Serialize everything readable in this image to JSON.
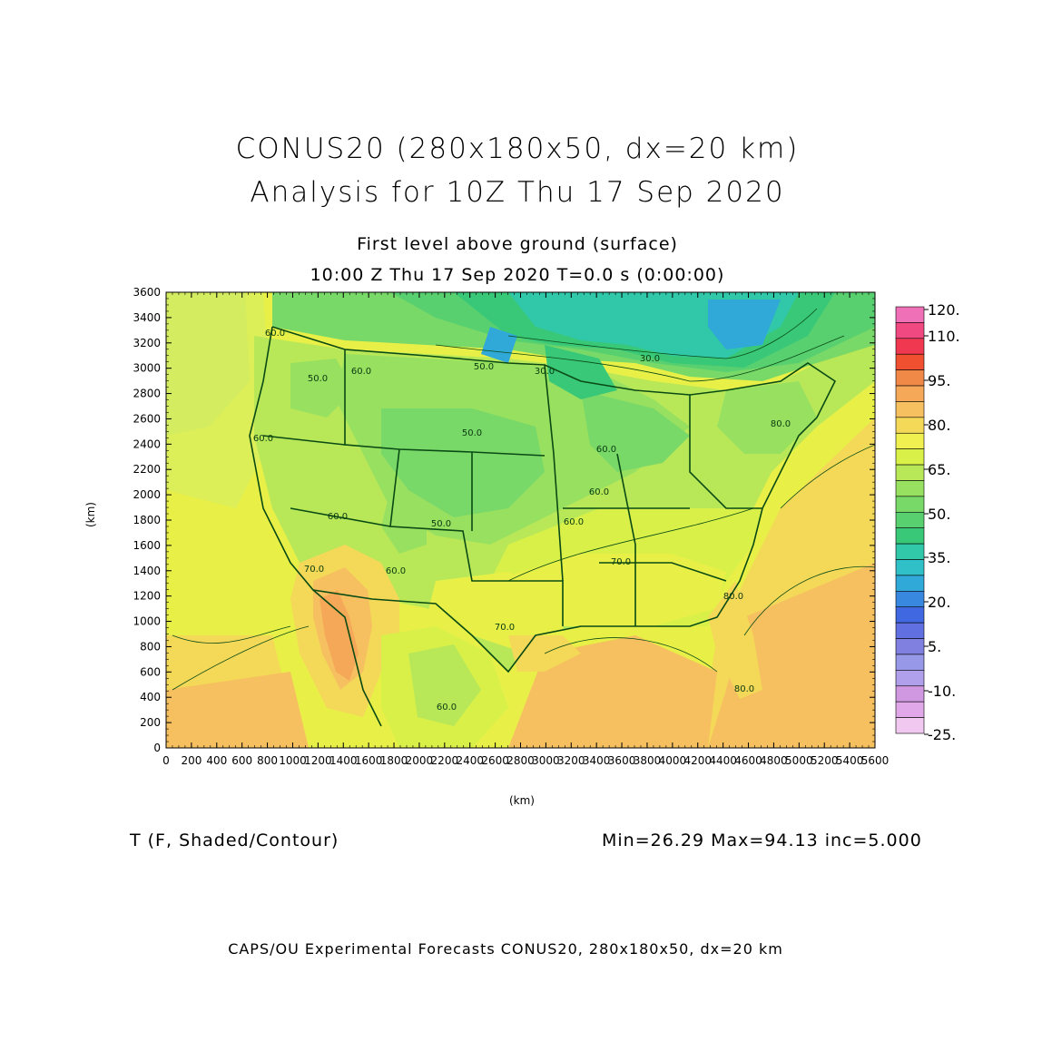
{
  "header": {
    "title_line1": "CONUS20 (280x180x50, dx=20 km)",
    "title_line2": "Analysis for 10Z Thu 17 Sep 2020",
    "subtitle_line1": "First level above ground (surface)",
    "subtitle_line2": "10:00 Z Thu 17 Sep 2020   T=0.0 s (0:00:00)"
  },
  "axes": {
    "x_label": "(km)",
    "y_label": "(km)",
    "x_ticks": [
      "0",
      "200",
      "400",
      "600",
      "800",
      "1000",
      "1200",
      "1400",
      "1600",
      "1800",
      "2000",
      "2200",
      "2400",
      "2600",
      "2800",
      "3000",
      "3200",
      "3400",
      "3600",
      "3800",
      "4000",
      "4200",
      "4400",
      "4600",
      "4800",
      "5000",
      "5200",
      "5400",
      "5600"
    ],
    "y_ticks": [
      "0",
      "200",
      "400",
      "600",
      "800",
      "1000",
      "1200",
      "1400",
      "1600",
      "1800",
      "2000",
      "2200",
      "2400",
      "2600",
      "2800",
      "3000",
      "3200",
      "3400",
      "3600"
    ],
    "x_range": [
      0,
      5600
    ],
    "y_range": [
      0,
      3600
    ]
  },
  "colorbar": {
    "labels": [
      "120.",
      "110.",
      "95.",
      "80.",
      "65.",
      "50.",
      "35.",
      "20.",
      "5.",
      "-10.",
      "-25."
    ],
    "colors": [
      "#f070b8",
      "#f04880",
      "#f03850",
      "#f05030",
      "#f08848",
      "#f4a858",
      "#f6c060",
      "#f4d858",
      "#f0f050",
      "#d8f048",
      "#b8e858",
      "#98e060",
      "#78d868",
      "#58d070",
      "#38c878",
      "#30c8a8",
      "#30c0c8",
      "#30a8d8",
      "#3888e0",
      "#4068e0",
      "#6070e0",
      "#8080e0",
      "#9898e8",
      "#b0a0ec",
      "#d098e0",
      "#e0a8e8",
      "#f0c8f0"
    ]
  },
  "contour_labels": [
    "60.0",
    "60.0",
    "50.0",
    "50.0",
    "30.0",
    "30.0",
    "60.0",
    "60.0",
    "60.0",
    "60.0",
    "50.0",
    "60.0",
    "70.0",
    "80.0",
    "70.0",
    "70.0",
    "60.0",
    "80.0",
    "80.0",
    "60.0",
    "50.0"
  ],
  "field": {
    "variable": "T (F, Shaded/Contour)",
    "stats": "Min=26.29 Max=94.13 inc=5.000"
  },
  "footer": "CAPS/OU Experimental Forecasts  CONUS20, 280x180x50, dx=20 km"
}
